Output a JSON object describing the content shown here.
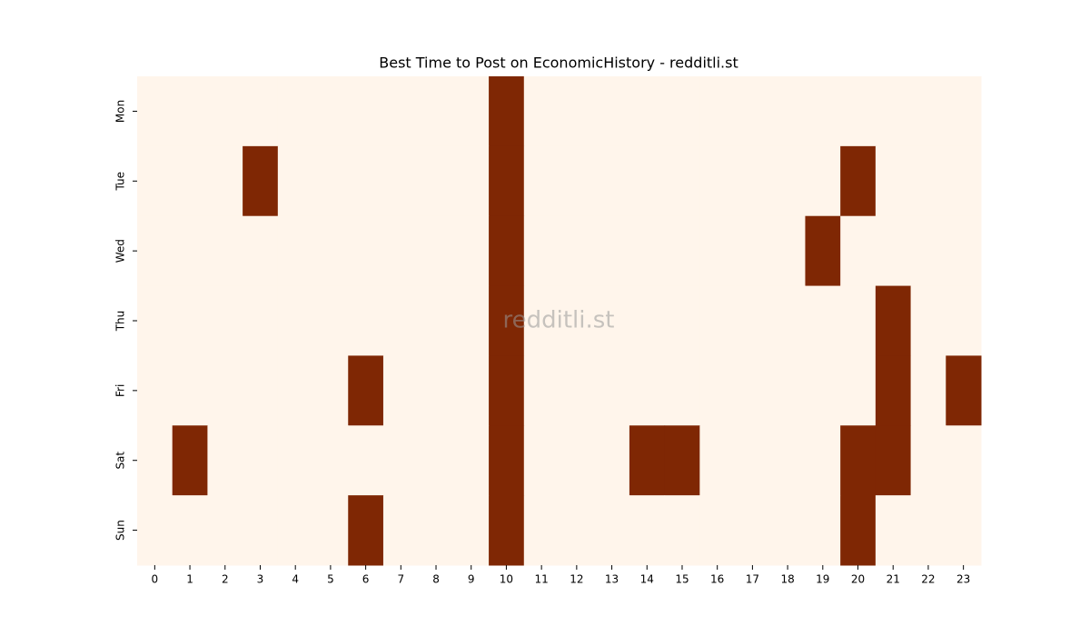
{
  "chart_data": {
    "type": "heatmap",
    "title": "Best Time to Post on EconomicHistory - redditli.st",
    "watermark": "redditli.st",
    "x_categories": [
      "0",
      "1",
      "2",
      "3",
      "4",
      "5",
      "6",
      "7",
      "8",
      "9",
      "10",
      "11",
      "12",
      "13",
      "14",
      "15",
      "16",
      "17",
      "18",
      "19",
      "20",
      "21",
      "22",
      "23"
    ],
    "y_categories": [
      "Mon",
      "Tue",
      "Wed",
      "Thu",
      "Fri",
      "Sat",
      "Sun"
    ],
    "colormap": [
      "#fff5eb",
      "#7f2704"
    ],
    "values": [
      [
        0,
        0,
        0,
        0,
        0,
        0,
        0,
        0,
        0,
        0,
        1,
        0,
        0,
        0,
        0,
        0,
        0,
        0,
        0,
        0,
        0,
        0,
        0,
        0
      ],
      [
        0,
        0,
        0,
        1,
        0,
        0,
        0,
        0,
        0,
        0,
        1,
        0,
        0,
        0,
        0,
        0,
        0,
        0,
        0,
        0,
        1,
        0,
        0,
        0
      ],
      [
        0,
        0,
        0,
        0,
        0,
        0,
        0,
        0,
        0,
        0,
        1,
        0,
        0,
        0,
        0,
        0,
        0,
        0,
        0,
        1,
        0,
        0,
        0,
        0
      ],
      [
        0,
        0,
        0,
        0,
        0,
        0,
        0,
        0,
        0,
        0,
        1,
        0,
        0,
        0,
        0,
        0,
        0,
        0,
        0,
        0,
        0,
        1,
        0,
        0
      ],
      [
        0,
        0,
        0,
        0,
        0,
        0,
        1,
        0,
        0,
        0,
        1,
        0,
        0,
        0,
        0,
        0,
        0,
        0,
        0,
        0,
        0,
        1,
        0,
        1
      ],
      [
        0,
        1,
        0,
        0,
        0,
        0,
        0,
        0,
        0,
        0,
        1,
        0,
        0,
        0,
        1,
        1,
        0,
        0,
        0,
        0,
        1,
        1,
        0,
        0
      ],
      [
        0,
        0,
        0,
        0,
        0,
        0,
        1,
        0,
        0,
        0,
        1,
        0,
        0,
        0,
        0,
        0,
        0,
        0,
        0,
        0,
        1,
        0,
        0,
        0
      ]
    ]
  }
}
